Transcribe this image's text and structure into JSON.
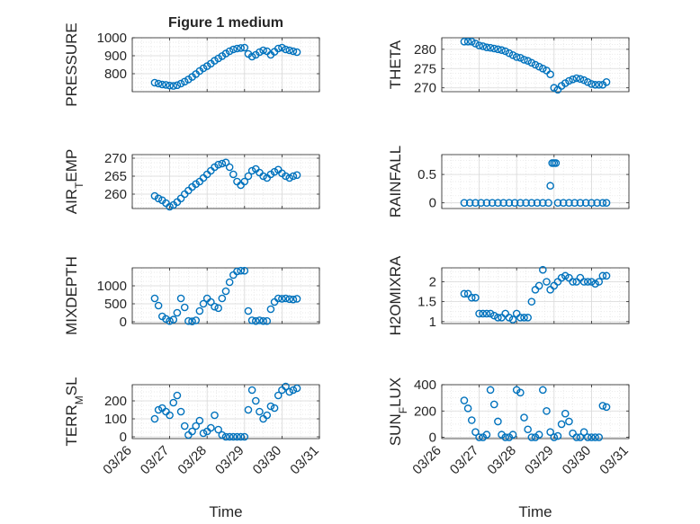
{
  "figure_title": "Figure 1 medium",
  "x_axis": {
    "label": "Time",
    "ticks": [
      "03/26",
      "03/27",
      "03/28",
      "03/29",
      "03/30",
      "03/31"
    ]
  },
  "colors": {
    "marker": "#0072BD",
    "grid": "#d9d9d9",
    "axis": "#262626"
  },
  "chart_data": [
    {
      "type": "scatter",
      "ylabel": "PRESSURE",
      "ylim": [
        700,
        1000
      ],
      "yticks": [
        800,
        900,
        1000
      ],
      "grid": true,
      "x": [
        26.6,
        26.7,
        26.8,
        26.9,
        27.0,
        27.1,
        27.2,
        27.3,
        27.4,
        27.5,
        27.6,
        27.7,
        27.8,
        27.9,
        28.0,
        28.1,
        28.2,
        28.3,
        28.4,
        28.5,
        28.6,
        28.7,
        28.8,
        28.9,
        29.0,
        29.1,
        29.2,
        29.3,
        29.4,
        29.5,
        29.6,
        29.7,
        29.8,
        29.9,
        30.0,
        30.1,
        30.2,
        30.3,
        30.4
      ],
      "y": [
        750,
        745,
        740,
        738,
        734,
        732,
        736,
        745,
        756,
        768,
        782,
        798,
        815,
        830,
        842,
        856,
        872,
        885,
        898,
        912,
        925,
        935,
        940,
        943,
        945,
        910,
        895,
        905,
        920,
        930,
        925,
        905,
        922,
        940,
        945,
        935,
        930,
        925,
        920
      ]
    },
    {
      "type": "scatter",
      "ylabel": "THETA",
      "ylim": [
        269,
        283
      ],
      "yticks": [
        270,
        275,
        280
      ],
      "grid": true,
      "x": [
        26.6,
        26.7,
        26.8,
        26.9,
        27.0,
        27.1,
        27.2,
        27.3,
        27.4,
        27.5,
        27.6,
        27.7,
        27.8,
        27.9,
        28.0,
        28.1,
        28.2,
        28.3,
        28.4,
        28.5,
        28.6,
        28.7,
        28.8,
        28.9,
        29.0,
        29.1,
        29.2,
        29.3,
        29.4,
        29.5,
        29.6,
        29.7,
        29.8,
        29.9,
        30.0,
        30.1,
        30.2,
        30.3,
        30.4
      ],
      "y": [
        282,
        282,
        282,
        281.5,
        281,
        280.8,
        280.5,
        280.4,
        280.2,
        280,
        279.8,
        279.5,
        279,
        278.5,
        278,
        277.8,
        277.3,
        277,
        276.5,
        276,
        275.5,
        275,
        274.5,
        273.5,
        270,
        269.5,
        270.5,
        271.2,
        271.8,
        272.2,
        272.5,
        272.3,
        272,
        271.5,
        271,
        270.8,
        270.8,
        270.8,
        271.5
      ]
    },
    {
      "type": "scatter",
      "ylabel": "AIR_TEMP",
      "ylim": [
        256,
        271
      ],
      "yticks": [
        260,
        265,
        270
      ],
      "grid": true,
      "x": [
        26.6,
        26.7,
        26.8,
        26.9,
        27.0,
        27.1,
        27.2,
        27.3,
        27.4,
        27.5,
        27.6,
        27.7,
        27.8,
        27.9,
        28.0,
        28.1,
        28.2,
        28.3,
        28.4,
        28.5,
        28.6,
        28.7,
        28.8,
        28.9,
        29.0,
        29.1,
        29.2,
        29.3,
        29.4,
        29.5,
        29.6,
        29.7,
        29.8,
        29.9,
        30.0,
        30.1,
        30.2,
        30.3,
        30.4
      ],
      "y": [
        259.5,
        258.8,
        258.3,
        257.5,
        256.5,
        257,
        257.8,
        258.8,
        260,
        261,
        262,
        262.8,
        263.5,
        264.5,
        265.5,
        266.5,
        267.5,
        268.2,
        268.5,
        268.8,
        267.5,
        265.5,
        263.5,
        262.5,
        263.5,
        265,
        266.5,
        267,
        266,
        265,
        264.5,
        265.5,
        266.2,
        266.8,
        265.8,
        265,
        264.5,
        265,
        265.3
      ]
    },
    {
      "type": "scatter",
      "ylabel": "RAINFALL",
      "ylim": [
        -0.1,
        0.85
      ],
      "yticks": [
        0,
        0.5
      ],
      "grid": true,
      "x": [
        26.6,
        26.75,
        26.9,
        27.05,
        27.2,
        27.35,
        27.5,
        27.65,
        27.8,
        27.95,
        28.1,
        28.25,
        28.4,
        28.55,
        28.7,
        28.85,
        28.9,
        28.95,
        29.0,
        29.05,
        29.1,
        29.25,
        29.4,
        29.55,
        29.7,
        29.85,
        30.0,
        30.15,
        30.3,
        30.4
      ],
      "y": [
        0,
        0,
        0,
        0,
        0,
        0,
        0,
        0,
        0,
        0,
        0,
        0,
        0,
        0,
        0,
        0,
        0.3,
        0.7,
        0.7,
        0.7,
        0,
        0,
        0,
        0,
        0,
        0,
        0,
        0,
        0,
        0
      ]
    },
    {
      "type": "scatter",
      "ylabel": "MIXDEPTH",
      "ylim": [
        -50,
        1500
      ],
      "yticks": [
        0,
        500,
        1000
      ],
      "grid": true,
      "x": [
        26.6,
        26.7,
        26.8,
        26.9,
        27.0,
        27.1,
        27.2,
        27.3,
        27.4,
        27.5,
        27.6,
        27.7,
        27.8,
        27.9,
        28.0,
        28.1,
        28.2,
        28.3,
        28.4,
        28.5,
        28.6,
        28.7,
        28.8,
        28.9,
        29.0,
        29.1,
        29.2,
        29.3,
        29.4,
        29.5,
        29.6,
        29.7,
        29.8,
        29.9,
        30.0,
        30.1,
        30.2,
        30.3,
        30.4
      ],
      "y": [
        650,
        450,
        150,
        80,
        20,
        60,
        250,
        650,
        400,
        20,
        10,
        40,
        300,
        500,
        650,
        550,
        420,
        380,
        650,
        850,
        1100,
        1300,
        1400,
        1420,
        1420,
        300,
        40,
        20,
        40,
        20,
        20,
        350,
        550,
        650,
        640,
        650,
        630,
        620,
        640
      ]
    },
    {
      "type": "scatter",
      "ylabel": "H2OMIXRA",
      "ylim": [
        0.95,
        2.35
      ],
      "yticks": [
        1,
        1.5,
        2
      ],
      "grid": true,
      "x": [
        26.6,
        26.7,
        26.8,
        26.9,
        27.0,
        27.1,
        27.2,
        27.3,
        27.4,
        27.5,
        27.6,
        27.7,
        27.8,
        27.9,
        28.0,
        28.1,
        28.2,
        28.3,
        28.4,
        28.5,
        28.6,
        28.7,
        28.8,
        28.9,
        29.0,
        29.1,
        29.2,
        29.3,
        29.4,
        29.5,
        29.6,
        29.7,
        29.8,
        29.9,
        30.0,
        30.1,
        30.2,
        30.3,
        30.4
      ],
      "y": [
        1.7,
        1.7,
        1.6,
        1.6,
        1.2,
        1.2,
        1.2,
        1.2,
        1.15,
        1.1,
        1.1,
        1.2,
        1.1,
        1.05,
        1.2,
        1.1,
        1.1,
        1.1,
        1.5,
        1.8,
        1.9,
        2.3,
        2.0,
        1.8,
        1.9,
        2.0,
        2.1,
        2.15,
        2.1,
        2.0,
        2.0,
        2.1,
        2.0,
        2.0,
        2.0,
        1.95,
        2.0,
        2.15,
        2.15
      ]
    },
    {
      "type": "scatter",
      "ylabel": "TERR_MSL",
      "ylim": [
        -10,
        290
      ],
      "yticks": [
        0,
        100,
        200
      ],
      "grid": true,
      "x": [
        26.6,
        26.7,
        26.8,
        26.9,
        27.0,
        27.1,
        27.2,
        27.3,
        27.4,
        27.5,
        27.6,
        27.7,
        27.8,
        27.9,
        28.0,
        28.1,
        28.2,
        28.3,
        28.4,
        28.5,
        28.6,
        28.7,
        28.8,
        28.9,
        29.0,
        29.1,
        29.2,
        29.3,
        29.4,
        29.5,
        29.6,
        29.7,
        29.8,
        29.9,
        30.0,
        30.1,
        30.2,
        30.3,
        30.4
      ],
      "y": [
        100,
        150,
        160,
        140,
        120,
        190,
        230,
        140,
        60,
        10,
        30,
        60,
        90,
        20,
        30,
        50,
        120,
        40,
        10,
        0,
        0,
        0,
        0,
        0,
        0,
        150,
        260,
        200,
        140,
        100,
        120,
        170,
        160,
        230,
        260,
        280,
        250,
        260,
        270
      ]
    },
    {
      "type": "scatter",
      "ylabel": "SUN_FLUX",
      "ylim": [
        -10,
        400
      ],
      "yticks": [
        0,
        200,
        400
      ],
      "grid": true,
      "x": [
        26.6,
        26.7,
        26.8,
        26.9,
        27.0,
        27.1,
        27.2,
        27.3,
        27.4,
        27.5,
        27.6,
        27.7,
        27.8,
        27.9,
        28.0,
        28.1,
        28.2,
        28.3,
        28.4,
        28.5,
        28.6,
        28.7,
        28.8,
        28.9,
        29.0,
        29.1,
        29.2,
        29.3,
        29.4,
        29.5,
        29.6,
        29.7,
        29.8,
        29.9,
        30.0,
        30.1,
        30.2,
        30.3,
        30.4
      ],
      "y": [
        280,
        220,
        130,
        40,
        0,
        0,
        20,
        360,
        250,
        120,
        20,
        0,
        0,
        20,
        360,
        340,
        150,
        60,
        0,
        0,
        20,
        360,
        200,
        40,
        0,
        10,
        100,
        180,
        120,
        30,
        0,
        0,
        40,
        0,
        0,
        0,
        0,
        240,
        230
      ]
    }
  ]
}
